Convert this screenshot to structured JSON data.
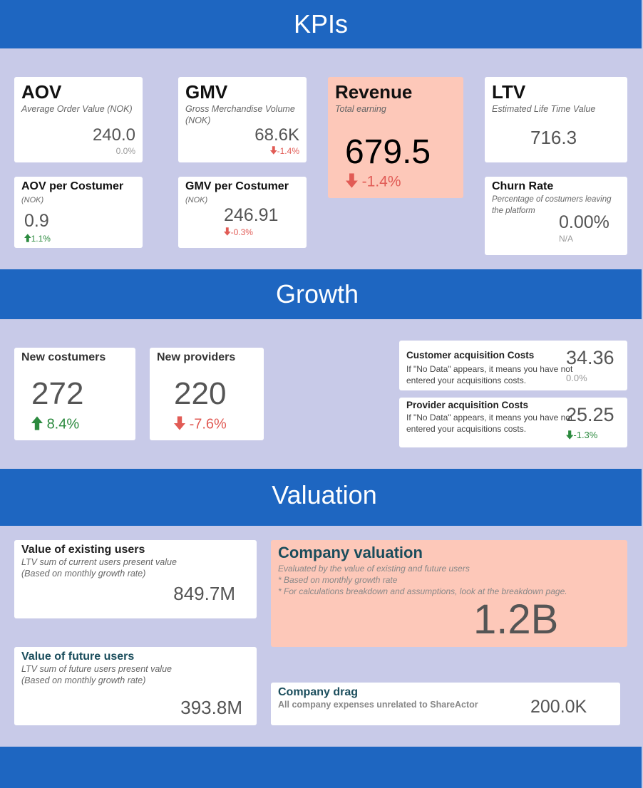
{
  "sections": {
    "kpis": "KPIs",
    "growth": "Growth",
    "valuation": "Valuation"
  },
  "kpi": {
    "aov": {
      "title": "AOV",
      "subtitle": "Average Order Value (NOK)",
      "value": "240.0",
      "change": "0.0%"
    },
    "gmv": {
      "title": "GMV",
      "subtitle": "Gross Merchandise Volume (NOK)",
      "value": "68.6K",
      "change": "-1.4%"
    },
    "revenue": {
      "title": "Revenue",
      "subtitle": "Total earning",
      "value": "679.5",
      "change": "-1.4%"
    },
    "ltv": {
      "title": "LTV",
      "subtitle": "Estimated Life Time Value",
      "value": "716.3"
    },
    "aov_costumer": {
      "title": "AOV per Costumer",
      "subtitle": "(NOK)",
      "value": "0.9",
      "change": "1.1%"
    },
    "gmv_costumer": {
      "title": "GMV per Costumer",
      "subtitle": "(NOK)",
      "value": "246.91",
      "change": "-0.3%"
    },
    "churn": {
      "title": "Churn Rate",
      "subtitle": "Percentage of costumers leaving the platform",
      "value": "0.00%",
      "change": "N/A"
    }
  },
  "growth": {
    "new_costumers": {
      "title": "New costumers",
      "value": "272",
      "change": "8.4%"
    },
    "new_providers": {
      "title": "New providers",
      "value": "220",
      "change": "-7.6%"
    },
    "customer_cac": {
      "title": "Customer acquisition Costs",
      "note": "If \"No Data\" appears, it means you have not entered your acquisitions costs.",
      "value": "34.36",
      "change": "0.0%"
    },
    "provider_cac": {
      "title": "Provider acquisition Costs",
      "note": "If \"No Data\" appears, it means you have not entered your acquisitions costs.",
      "value": "25.25",
      "change": "-1.3%"
    }
  },
  "valuation": {
    "existing": {
      "title": "Value of existing users",
      "line1": "LTV sum of current users present value",
      "line2": "(Based on monthly growth rate)",
      "value": "849.7M"
    },
    "future": {
      "title": "Value of future users",
      "line1": "LTV sum of future users present value",
      "line2": "(Based on monthly growth rate)",
      "value": "393.8M"
    },
    "company": {
      "title": "Company valuation",
      "line1": "Evaluated by the value of existing and future users",
      "line2": "* Based on monthly growth rate",
      "line3": "* For calculations breakdown and assumptions, look at the breakdown page.",
      "value": "1.2B"
    },
    "drag": {
      "title": "Company drag",
      "subtitle": "All company expenses unrelated to ShareActor",
      "value": "200.0K"
    }
  },
  "colors": {
    "band": "#1e66c1",
    "background": "#c8cae8",
    "highlight": "#fdc8b9",
    "negative": "#e15b55",
    "positive": "#2b8a3e"
  }
}
